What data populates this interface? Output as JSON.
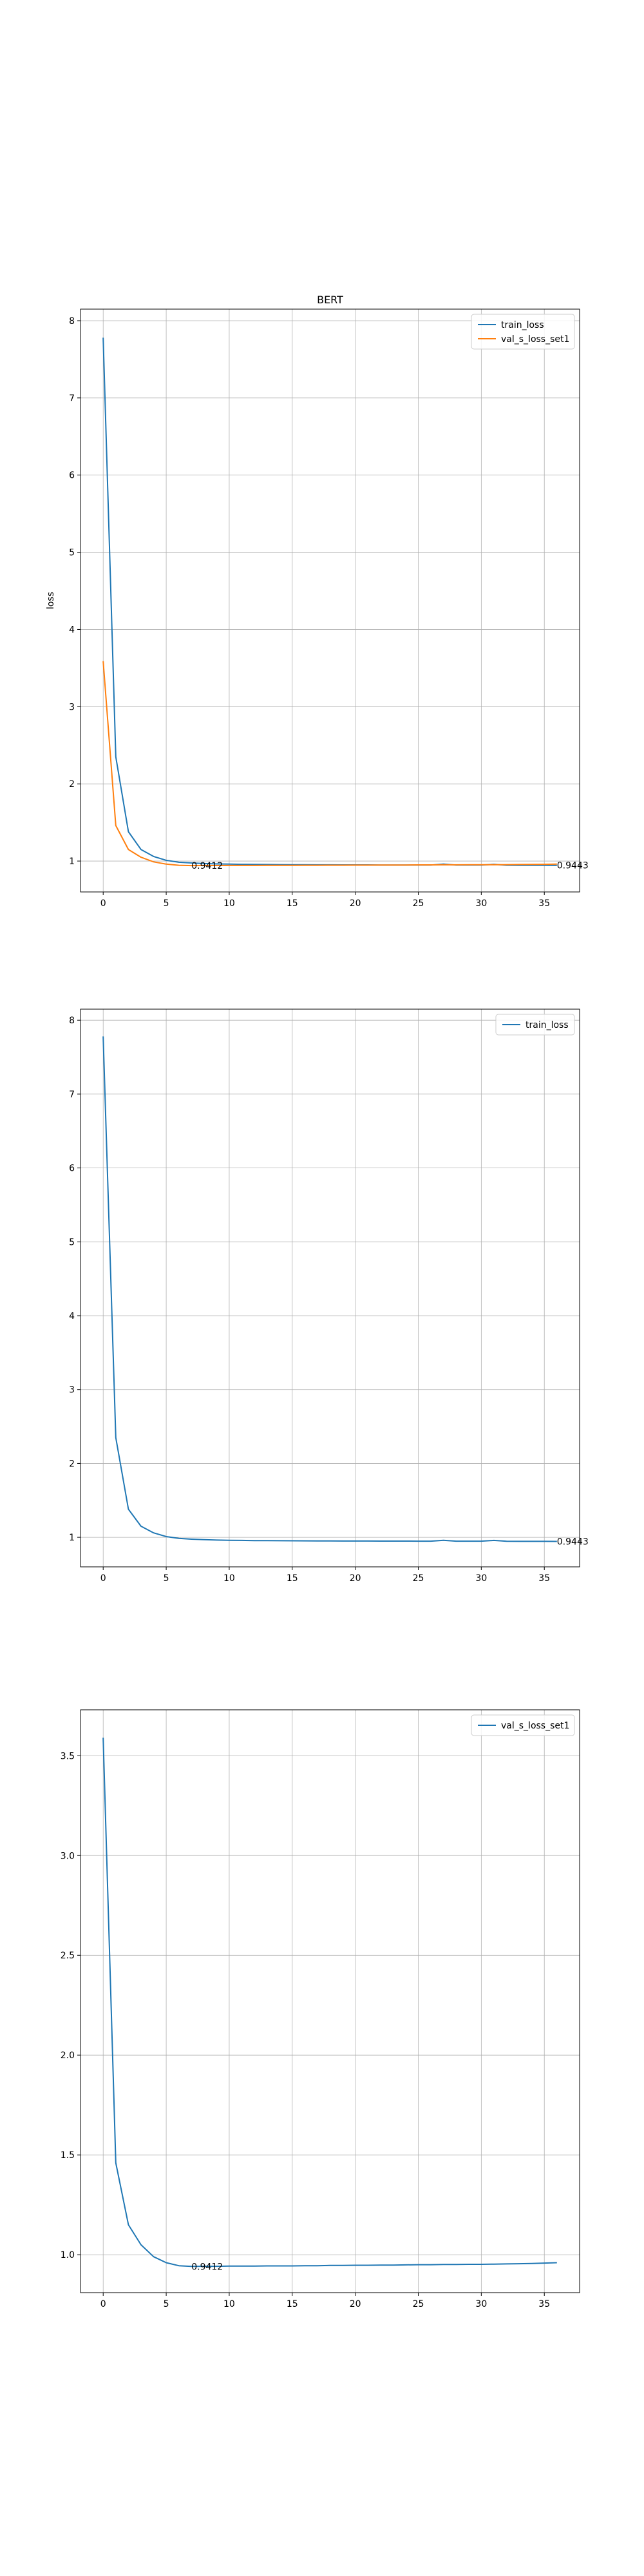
{
  "chart_data": [
    {
      "type": "line",
      "title": "BERT",
      "xlabel": "",
      "ylabel": "loss",
      "xlim": [
        -1.8,
        37.8
      ],
      "ylim": [
        0.6,
        8.15
      ],
      "xticks": [
        0,
        5,
        10,
        15,
        20,
        25,
        30,
        35
      ],
      "yticks": [
        1,
        2,
        3,
        4,
        5,
        6,
        7,
        8
      ],
      "grid": true,
      "legend": "top-right",
      "series": [
        {
          "name": "train_loss",
          "color": "#1f77b4",
          "x": [
            0,
            1,
            2,
            3,
            4,
            5,
            6,
            7,
            8,
            9,
            10,
            11,
            12,
            13,
            14,
            15,
            16,
            17,
            18,
            19,
            20,
            21,
            22,
            23,
            24,
            25,
            26,
            27,
            28,
            29,
            30,
            31,
            32,
            33,
            34,
            35,
            36
          ],
          "y": [
            7.78,
            2.35,
            1.38,
            1.15,
            1.06,
            1.01,
            0.985,
            0.975,
            0.968,
            0.963,
            0.96,
            0.958,
            0.956,
            0.955,
            0.954,
            0.953,
            0.952,
            0.951,
            0.951,
            0.95,
            0.95,
            0.95,
            0.949,
            0.949,
            0.949,
            0.948,
            0.948,
            0.96,
            0.948,
            0.948,
            0.948,
            0.958,
            0.946,
            0.945,
            0.945,
            0.945,
            0.9443
          ]
        },
        {
          "name": "val_s_loss_set1",
          "color": "#ff7f0e",
          "x": [
            0,
            1,
            2,
            3,
            4,
            5,
            6,
            7,
            8,
            9,
            10,
            11,
            12,
            13,
            14,
            15,
            16,
            17,
            18,
            19,
            20,
            21,
            22,
            23,
            24,
            25,
            26,
            27,
            28,
            29,
            30,
            31,
            32,
            33,
            34,
            35,
            36
          ],
          "y": [
            3.59,
            1.46,
            1.15,
            1.05,
            0.99,
            0.96,
            0.945,
            0.9412,
            0.942,
            0.942,
            0.943,
            0.943,
            0.943,
            0.944,
            0.944,
            0.944,
            0.945,
            0.945,
            0.946,
            0.946,
            0.947,
            0.947,
            0.948,
            0.948,
            0.949,
            0.95,
            0.95,
            0.951,
            0.951,
            0.952,
            0.952,
            0.953,
            0.954,
            0.955,
            0.956,
            0.958,
            0.96
          ]
        }
      ],
      "annotations": [
        {
          "x": 7,
          "y": 0.9412,
          "text": "0.9412"
        },
        {
          "x": 36,
          "y": 0.9443,
          "text": "0.9443"
        }
      ]
    },
    {
      "type": "line",
      "title": "",
      "xlabel": "",
      "ylabel": "",
      "xlim": [
        -1.8,
        37.8
      ],
      "ylim": [
        0.6,
        8.15
      ],
      "xticks": [
        0,
        5,
        10,
        15,
        20,
        25,
        30,
        35
      ],
      "yticks": [
        1,
        2,
        3,
        4,
        5,
        6,
        7,
        8
      ],
      "grid": true,
      "legend": "top-right",
      "series": [
        {
          "name": "train_loss",
          "color": "#1f77b4",
          "x": [
            0,
            1,
            2,
            3,
            4,
            5,
            6,
            7,
            8,
            9,
            10,
            11,
            12,
            13,
            14,
            15,
            16,
            17,
            18,
            19,
            20,
            21,
            22,
            23,
            24,
            25,
            26,
            27,
            28,
            29,
            30,
            31,
            32,
            33,
            34,
            35,
            36
          ],
          "y": [
            7.78,
            2.35,
            1.38,
            1.15,
            1.06,
            1.01,
            0.985,
            0.975,
            0.968,
            0.963,
            0.96,
            0.958,
            0.956,
            0.955,
            0.954,
            0.953,
            0.952,
            0.951,
            0.951,
            0.95,
            0.95,
            0.95,
            0.949,
            0.949,
            0.949,
            0.948,
            0.948,
            0.96,
            0.948,
            0.948,
            0.948,
            0.958,
            0.946,
            0.945,
            0.945,
            0.945,
            0.9443
          ]
        }
      ],
      "annotations": [
        {
          "x": 36,
          "y": 0.9443,
          "text": "0.9443"
        }
      ]
    },
    {
      "type": "line",
      "title": "",
      "xlabel": "",
      "ylabel": "",
      "xlim": [
        -1.8,
        37.8
      ],
      "ylim": [
        0.81,
        3.73
      ],
      "xticks": [
        0,
        5,
        10,
        15,
        20,
        25,
        30,
        35
      ],
      "yticks": [
        1.0,
        1.5,
        2.0,
        2.5,
        3.0,
        3.5
      ],
      "ytick_labels": [
        "1.0",
        "1.5",
        "2.0",
        "2.5",
        "3.0",
        "3.5"
      ],
      "grid": true,
      "legend": "top-right",
      "series": [
        {
          "name": "val_s_loss_set1",
          "color": "#1f77b4",
          "x": [
            0,
            1,
            2,
            3,
            4,
            5,
            6,
            7,
            8,
            9,
            10,
            11,
            12,
            13,
            14,
            15,
            16,
            17,
            18,
            19,
            20,
            21,
            22,
            23,
            24,
            25,
            26,
            27,
            28,
            29,
            30,
            31,
            32,
            33,
            34,
            35,
            36
          ],
          "y": [
            3.59,
            1.46,
            1.15,
            1.05,
            0.99,
            0.96,
            0.945,
            0.9412,
            0.942,
            0.942,
            0.943,
            0.943,
            0.943,
            0.944,
            0.944,
            0.944,
            0.945,
            0.945,
            0.946,
            0.946,
            0.947,
            0.947,
            0.948,
            0.948,
            0.949,
            0.95,
            0.95,
            0.951,
            0.951,
            0.952,
            0.952,
            0.953,
            0.954,
            0.955,
            0.956,
            0.958,
            0.96
          ]
        }
      ],
      "annotations": [
        {
          "x": 7,
          "y": 0.9412,
          "text": "0.9412"
        }
      ]
    }
  ]
}
